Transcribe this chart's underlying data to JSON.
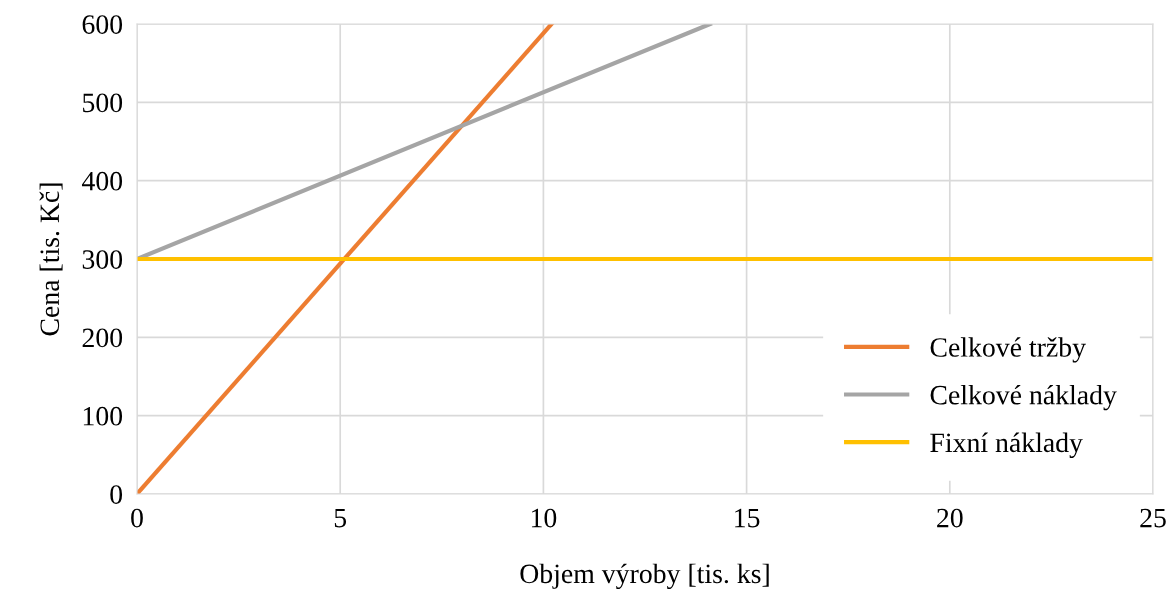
{
  "chart_data": {
    "type": "line",
    "xlabel": "Objem výroby [tis. ks]",
    "ylabel": "Cena [tis. Kč]",
    "series": [
      {
        "name": "Celkové tržby",
        "color": "#ed7d31",
        "x": [
          0,
          10.2
        ],
        "values": [
          0,
          600
        ]
      },
      {
        "name": "Celkové náklady",
        "color": "#a5a5a5",
        "x": [
          0,
          14.1
        ],
        "values": [
          300,
          600
        ]
      },
      {
        "name": "Fixní náklady",
        "color": "#ffc000",
        "x": [
          0,
          25
        ],
        "values": [
          300,
          300
        ]
      }
    ],
    "xlim": [
      0,
      25
    ],
    "xticks": [
      0,
      5,
      10,
      15,
      20,
      25
    ],
    "ylim": [
      0,
      600
    ],
    "yticks": [
      0,
      100,
      200,
      300,
      400,
      500,
      600
    ],
    "grid": true,
    "legend": "bottom right",
    "marker": "none",
    "line_style": "solid"
  }
}
